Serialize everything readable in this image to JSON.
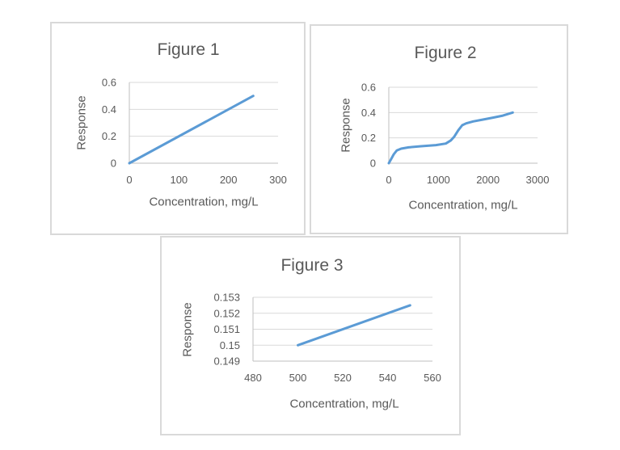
{
  "colors": {
    "line": "#5B9BD5",
    "gridline": "#D9D9D9",
    "axis_line": "#BFBFBF",
    "text": "#595959",
    "panel_border": "#D9D9D9",
    "background": "#FFFFFF"
  },
  "chart_data": [
    {
      "id": "figure-1",
      "type": "line",
      "title": "Figure 1",
      "xlabel": "Concentration, mg/L",
      "ylabel": "Response",
      "xlim": [
        0,
        300
      ],
      "ylim": [
        0,
        0.6
      ],
      "xticks": [
        0,
        100,
        200,
        300
      ],
      "yticks": [
        0,
        0.2,
        0.4,
        0.6
      ],
      "grid": true,
      "legend": "none",
      "series": [
        {
          "x": [
            0,
            250
          ],
          "y": [
            0,
            0.5
          ]
        }
      ]
    },
    {
      "id": "figure-2",
      "type": "line",
      "title": "Figure 2",
      "xlabel": "Concentration, mg/L",
      "ylabel": "Response",
      "xlim": [
        0,
        3000
      ],
      "ylim": [
        0,
        0.6
      ],
      "xticks": [
        0,
        1000,
        2000,
        3000
      ],
      "yticks": [
        0,
        0.2,
        0.4,
        0.6
      ],
      "grid": true,
      "legend": "none",
      "series": [
        {
          "x": [
            0,
            50,
            100,
            160,
            250,
            400,
            650,
            950,
            1150,
            1250,
            1320,
            1400,
            1480,
            1560,
            1700,
            1900,
            2100,
            2300,
            2500
          ],
          "y": [
            0,
            0.035,
            0.07,
            0.1,
            0.115,
            0.125,
            0.134,
            0.143,
            0.155,
            0.18,
            0.21,
            0.26,
            0.3,
            0.315,
            0.33,
            0.345,
            0.36,
            0.376,
            0.4
          ]
        }
      ]
    },
    {
      "id": "figure-3",
      "type": "line",
      "title": "Figure 3",
      "xlabel": "Concentration, mg/L",
      "ylabel": "Response",
      "xlim": [
        480,
        560
      ],
      "ylim": [
        0.149,
        0.153
      ],
      "xticks": [
        480,
        500,
        520,
        540,
        560
      ],
      "yticks": [
        0.149,
        0.15,
        0.151,
        0.152,
        0.153
      ],
      "grid": true,
      "legend": "none",
      "series": [
        {
          "x": [
            500,
            550
          ],
          "y": [
            0.15,
            0.1525
          ]
        }
      ]
    }
  ]
}
